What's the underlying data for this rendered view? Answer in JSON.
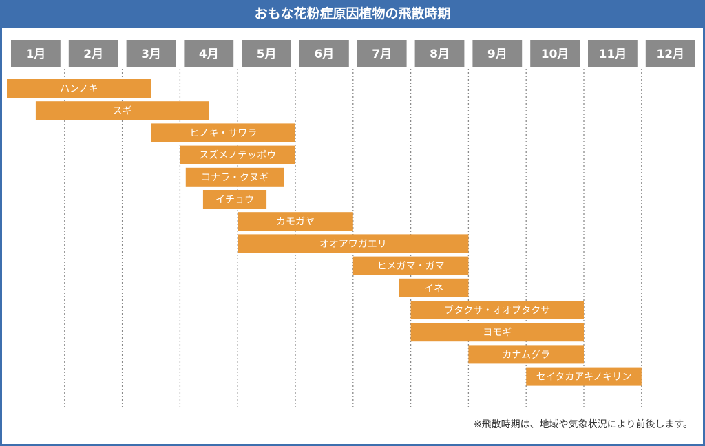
{
  "colors": {
    "header": "#3e6fae",
    "month_box": "#8a8a8a",
    "bar": "#e8993a",
    "grid": "#8a8a8a"
  },
  "chart_data": {
    "type": "gantt",
    "title": "おもな花粉症原因植物の飛散時期",
    "months": [
      "1月",
      "2月",
      "3月",
      "4月",
      "5月",
      "6月",
      "7月",
      "8月",
      "9月",
      "10月",
      "11月",
      "12月"
    ],
    "x_unit": "month (1.0 = start of January)",
    "xlim": [
      1,
      13
    ],
    "series": [
      {
        "name": "ハンノキ",
        "start": 1.0,
        "end": 3.5
      },
      {
        "name": "スギ",
        "start": 1.5,
        "end": 4.5
      },
      {
        "name": "ヒノキ・サワラ",
        "start": 3.5,
        "end": 6.0
      },
      {
        "name": "スズメノテッポウ",
        "start": 4.0,
        "end": 6.0
      },
      {
        "name": "コナラ・クヌギ",
        "start": 4.1,
        "end": 5.8
      },
      {
        "name": "イチョウ",
        "start": 4.4,
        "end": 5.5
      },
      {
        "name": "カモガヤ",
        "start": 5.0,
        "end": 7.0
      },
      {
        "name": "オオアワガエリ",
        "start": 5.0,
        "end": 9.0
      },
      {
        "name": "ヒメガマ・ガマ",
        "start": 7.0,
        "end": 9.0
      },
      {
        "name": "イネ",
        "start": 7.8,
        "end": 9.0
      },
      {
        "name": "ブタクサ・オオブタクサ",
        "start": 8.0,
        "end": 11.0
      },
      {
        "name": "ヨモギ",
        "start": 8.0,
        "end": 11.0
      },
      {
        "name": "カナムグラ",
        "start": 9.0,
        "end": 11.0
      },
      {
        "name": "セイタカアキノキリン",
        "start": 10.0,
        "end": 12.0
      }
    ]
  },
  "footnote": "※飛散時期は、地域や気象状況により前後します。"
}
